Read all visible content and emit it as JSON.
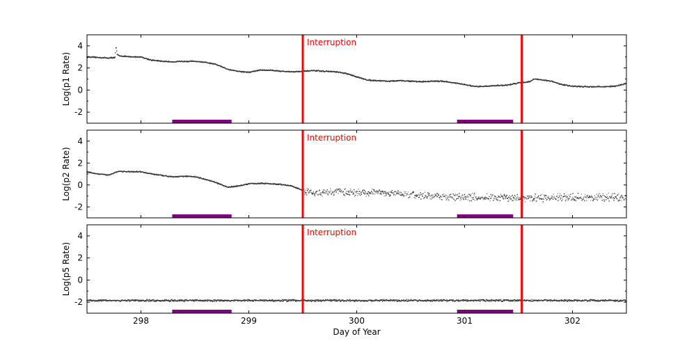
{
  "chart_data": [
    {
      "type": "scatter",
      "ylabel": "Log(p1 Rate)",
      "xlim": [
        297.5,
        302.5
      ],
      "ylim": [
        -3,
        5
      ],
      "yticks": [
        4,
        2,
        0,
        -2
      ],
      "xticks": [
        298,
        299,
        300,
        301,
        302
      ],
      "annotation": "Interruption",
      "series": [
        {
          "x": [
            297.5,
            297.7,
            297.76,
            297.77,
            297.78,
            297.8,
            297.9,
            298.0,
            298.1,
            298.2,
            298.3,
            298.4,
            298.5,
            298.6,
            298.7,
            298.8,
            298.9,
            299.0,
            299.1,
            299.2,
            299.3,
            299.4,
            299.5,
            299.6,
            299.7,
            299.8,
            299.9,
            300.0,
            300.1,
            300.2,
            300.3,
            300.4,
            300.5,
            300.6,
            300.7,
            300.8,
            300.9,
            301.0,
            301.1,
            301.2,
            301.3,
            301.4,
            301.5,
            301.6,
            301.65,
            301.7,
            301.8,
            301.9,
            302.0,
            302.1,
            302.2,
            302.3,
            302.4,
            302.5
          ],
          "y": [
            3.0,
            2.9,
            2.95,
            4.0,
            3.2,
            3.1,
            3.0,
            3.0,
            2.7,
            2.6,
            2.55,
            2.6,
            2.6,
            2.5,
            2.3,
            1.9,
            1.7,
            1.6,
            1.8,
            1.8,
            1.7,
            1.65,
            1.7,
            1.75,
            1.7,
            1.65,
            1.5,
            1.2,
            0.9,
            0.85,
            0.8,
            0.85,
            0.8,
            0.75,
            0.8,
            0.8,
            0.65,
            0.5,
            0.3,
            0.35,
            0.4,
            0.45,
            0.65,
            0.75,
            1.0,
            0.95,
            0.8,
            0.5,
            0.35,
            0.3,
            0.3,
            0.3,
            0.35,
            0.6
          ]
        }
      ]
    },
    {
      "type": "scatter",
      "ylabel": "Log(p2 Rate)",
      "xlim": [
        297.5,
        302.5
      ],
      "ylim": [
        -3,
        5
      ],
      "yticks": [
        4,
        2,
        0,
        -2
      ],
      "xticks": [
        298,
        299,
        300,
        301,
        302
      ],
      "annotation": "Interruption",
      "series": [
        {
          "x": [
            297.5,
            297.6,
            297.7,
            297.75,
            297.8,
            297.9,
            298.0,
            298.1,
            298.2,
            298.3,
            298.4,
            298.5,
            298.6,
            298.7,
            298.8,
            298.9,
            299.0,
            299.1,
            299.2,
            299.3,
            299.4,
            299.5,
            299.6,
            299.7,
            299.8,
            300.0,
            300.2,
            300.4,
            300.6,
            300.8,
            301.0,
            301.5,
            302.0,
            302.5
          ],
          "y": [
            1.2,
            1.0,
            0.9,
            1.1,
            1.25,
            1.2,
            1.2,
            1.0,
            0.85,
            0.75,
            0.8,
            0.75,
            0.5,
            0.2,
            -0.2,
            -0.1,
            0.1,
            0.15,
            0.1,
            0.05,
            -0.1,
            -0.5,
            -0.8,
            -0.75,
            -0.6,
            -0.7,
            -0.7,
            -0.8,
            -1.0,
            -1.05,
            -1.1,
            -1.2,
            -1.15,
            -1.1
          ]
        }
      ]
    },
    {
      "type": "scatter",
      "ylabel": "Log(p5 Rate)",
      "xlabel": "Day of Year",
      "xlim": [
        297.5,
        302.5
      ],
      "ylim": [
        -3,
        5
      ],
      "yticks": [
        4,
        2,
        0,
        -2
      ],
      "xticks": [
        298,
        299,
        300,
        301,
        302
      ],
      "annotation": "Interruption",
      "series": [
        {
          "x": [
            297.5,
            302.5
          ],
          "y": [
            -1.85,
            -1.85
          ]
        }
      ]
    }
  ],
  "interruption_lines": [
    299.5,
    301.53
  ],
  "interval_bars": [
    [
      298.29,
      298.84
    ],
    [
      300.93,
      301.45
    ]
  ],
  "colors": {
    "points": "#333333",
    "interruption": "#ff0000",
    "bars": "#800080"
  }
}
